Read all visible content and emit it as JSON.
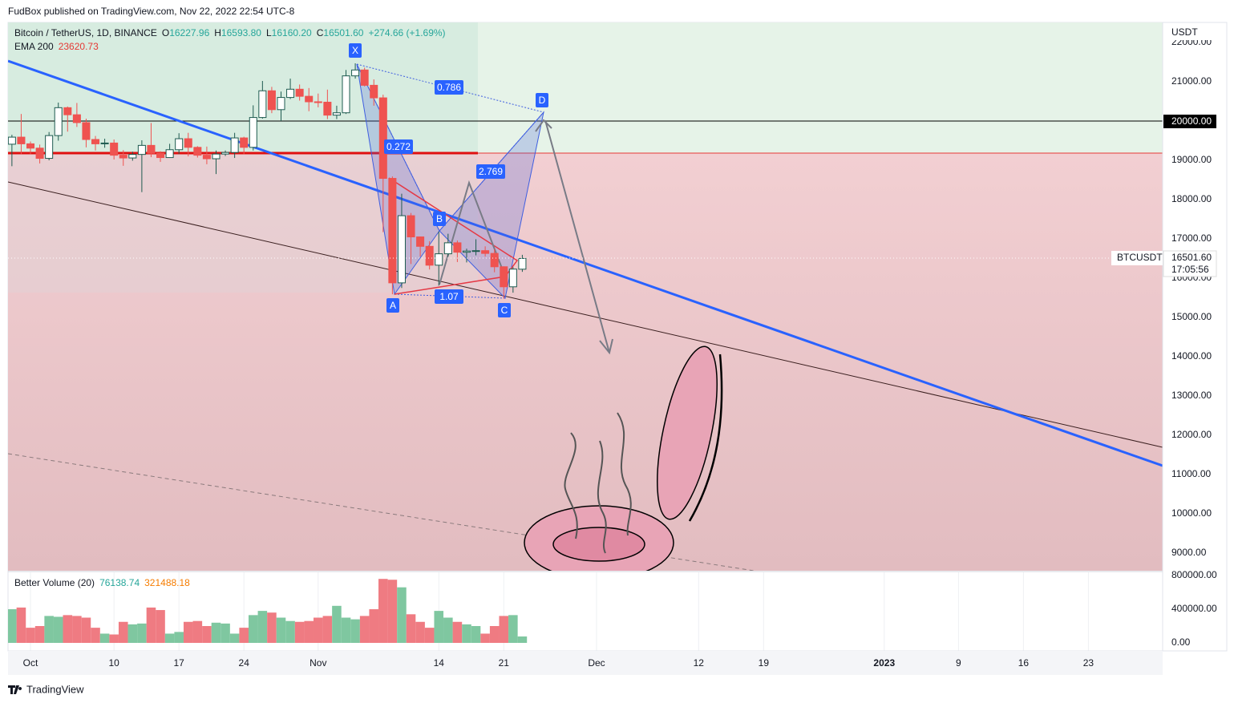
{
  "header": "FudBox published on TradingView.com, Nov 22, 2022 22:54 UTC-8",
  "footer": "TradingView",
  "chart_data": {
    "type": "candlestick",
    "title": "Bitcoin / TetherUS, 1D, BINANCE",
    "legend": [
      {
        "key": "O",
        "value": "16227.96"
      },
      {
        "key": "H",
        "value": "16593.80"
      },
      {
        "key": "L",
        "value": "16160.20"
      },
      {
        "key": "C",
        "value": "16501.60"
      }
    ],
    "change": "+274.66 (+1.69%)",
    "ema": {
      "name": "EMA 200",
      "value": "23620.73"
    },
    "currency": "USDT",
    "symbol_tag": "BTCUSDT",
    "price_tag": "16501.60",
    "countdown": "17:05:56",
    "level_tag": "20000.00",
    "pattern": {
      "points": [
        "X",
        "A",
        "B",
        "C",
        "D"
      ],
      "ratios": [
        "0.786",
        "0.272",
        "2.769",
        "1.07"
      ]
    },
    "up_color": "#ffffff",
    "down_color": "#ef5350",
    "outline_color": "#1e5b50",
    "x": [
      -2,
      -1,
      0,
      1,
      2,
      3,
      4,
      5,
      6,
      7,
      8,
      9,
      10,
      11,
      12,
      13,
      14,
      15,
      16,
      17,
      18,
      19,
      20,
      21,
      22,
      23,
      24,
      25,
      26,
      27,
      28,
      29,
      30,
      31,
      32,
      33,
      34,
      35,
      36,
      37,
      38,
      39,
      40,
      41,
      42,
      43,
      44,
      45,
      46,
      47,
      48,
      49,
      50,
      51,
      52,
      53
    ],
    "open": [
      19410,
      19590,
      19420,
      19310,
      19050,
      19630,
      20340,
      20160,
      19960,
      19530,
      19420,
      19440,
      19130,
      19060,
      19150,
      19380,
      19180,
      19070,
      19270,
      19550,
      19330,
      19130,
      19040,
      19160,
      19200,
      19570,
      19330,
      20090,
      20770,
      20290,
      20600,
      20810,
      20630,
      20490,
      20480,
      20150,
      20210,
      21150,
      21300,
      20910,
      20590,
      18540,
      15880,
      17590,
      17050,
      16810,
      16330,
      16620,
      16900,
      16660,
      16690,
      16700,
      16630,
      16290,
      15780,
      16227.96
    ],
    "high": [
      19650,
      20180,
      19480,
      19400,
      19720,
      20470,
      20370,
      20460,
      20060,
      19620,
      19550,
      19530,
      19260,
      19220,
      19510,
      19950,
      19230,
      19420,
      19690,
      19700,
      19360,
      19350,
      19250,
      19250,
      19700,
      19600,
      20400,
      21020,
      20870,
      20750,
      21080,
      20930,
      20840,
      20700,
      20800,
      20390,
      21300,
      21470,
      21360,
      21060,
      20670,
      18590,
      18150,
      17660,
      17060,
      16940,
      17190,
      17130,
      16960,
      16750,
      16990,
      16810,
      16740,
      16300,
      16280,
      16593.8
    ],
    "low": [
      18850,
      19160,
      19160,
      18920,
      19000,
      19500,
      19730,
      19850,
      19330,
      19250,
      19320,
      19020,
      18860,
      18990,
      18190,
      19080,
      18960,
      19060,
      19160,
      19100,
      19070,
      18900,
      18650,
      19110,
      19060,
      19160,
      19250,
      20060,
      20200,
      20000,
      20560,
      20520,
      20250,
      20350,
      20050,
      20050,
      20180,
      21080,
      20880,
      20390,
      17170,
      15590,
      15750,
      16360,
      16550,
      16220,
      15810,
      16550,
      16410,
      16400,
      16580,
      16550,
      16150,
      15480,
      15630,
      16160.2
    ],
    "close": [
      19590,
      19420,
      19310,
      19050,
      19630,
      20340,
      20160,
      19960,
      19530,
      19420,
      19440,
      19130,
      19060,
      19150,
      19380,
      19180,
      19070,
      19270,
      19550,
      19330,
      19130,
      19040,
      19160,
      19200,
      19570,
      19330,
      20090,
      20770,
      20290,
      20600,
      20810,
      20630,
      20490,
      20480,
      20150,
      20210,
      21150,
      21300,
      20910,
      20590,
      18540,
      15880,
      17590,
      17050,
      16810,
      16330,
      16620,
      16900,
      16660,
      16690,
      16700,
      16630,
      16290,
      15780,
      16230,
      16501.6
    ],
    "xlim": [
      -2.42,
      122
    ],
    "xticks": [
      {
        "value": 0,
        "label": "Oct"
      },
      {
        "value": 9,
        "label": "10"
      },
      {
        "value": 16,
        "label": "17"
      },
      {
        "value": 23,
        "label": "24"
      },
      {
        "value": 31,
        "label": "Nov"
      },
      {
        "value": 44,
        "label": "14"
      },
      {
        "value": 51,
        "label": "21"
      },
      {
        "value": 61,
        "label": "Dec"
      },
      {
        "value": 72,
        "label": "12"
      },
      {
        "value": 79,
        "label": "19"
      },
      {
        "value": 92,
        "label": "2023"
      },
      {
        "value": 100,
        "label": "9"
      },
      {
        "value": 107,
        "label": "16"
      },
      {
        "value": 114,
        "label": "23"
      }
    ],
    "ylim": [
      8551,
      22510
    ],
    "yticks": [
      {
        "value": 9000,
        "label": "9000.00"
      },
      {
        "value": 10000,
        "label": "10000.00"
      },
      {
        "value": 11000,
        "label": "11000.00"
      },
      {
        "value": 12000,
        "label": "12000.00"
      },
      {
        "value": 13000,
        "label": "13000.00"
      },
      {
        "value": 14000,
        "label": "14000.00"
      },
      {
        "value": 15000,
        "label": "15000.00"
      },
      {
        "value": 16000,
        "label": "16000.00"
      },
      {
        "value": 17000,
        "label": "17000.00"
      },
      {
        "value": 18000,
        "label": "18000.00"
      },
      {
        "value": 19000,
        "label": "19000.00"
      },
      {
        "value": 21000,
        "label": "21000.00"
      },
      {
        "value": 22000,
        "label": "22000.00"
      }
    ],
    "volume": {
      "name": "Better Volume (20)",
      "last": "76138.74",
      "ma": "321488.18",
      "up_color": "#7fc7a0",
      "down_color": "#ef7b82",
      "values": [
        400000,
        420000,
        180000,
        200000,
        320000,
        310000,
        330000,
        320000,
        300000,
        180000,
        110000,
        100000,
        250000,
        220000,
        230000,
        420000,
        390000,
        110000,
        130000,
        250000,
        260000,
        200000,
        240000,
        230000,
        110000,
        180000,
        330000,
        380000,
        360000,
        300000,
        260000,
        250000,
        260000,
        300000,
        320000,
        440000,
        300000,
        280000,
        320000,
        400000,
        760000,
        750000,
        660000,
        340000,
        250000,
        180000,
        380000,
        300000,
        250000,
        220000,
        200000,
        110000,
        200000,
        320000,
        330000,
        76138.74
      ],
      "ylim": [
        -95000,
        838000
      ],
      "yticks": [
        {
          "value": 0,
          "label": "0.00"
        },
        {
          "value": 400000,
          "label": "400000.00"
        },
        {
          "value": 800000,
          "label": "800000.00"
        }
      ]
    }
  }
}
